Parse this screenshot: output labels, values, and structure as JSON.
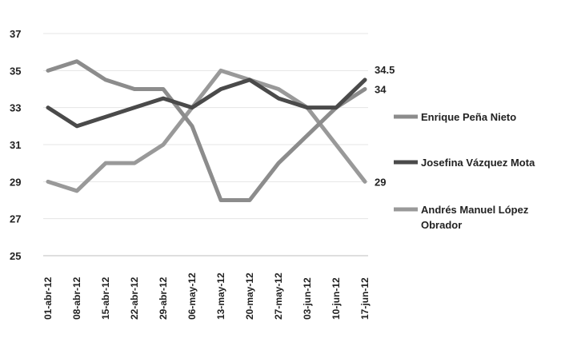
{
  "chart_data": {
    "type": "line",
    "categories": [
      "01-abr-12",
      "08-abr-12",
      "15-abr-12",
      "22-abr-12",
      "29-abr-12",
      "06-may-12",
      "13-may-12",
      "20-may-12",
      "27-may-12",
      "03-jun-12",
      "10-jun-12",
      "17-jun-12"
    ],
    "series": [
      {
        "name": "Enrique Peña Nieto",
        "color": "#8c8c8c",
        "values": [
          35,
          35.5,
          34.5,
          34,
          34,
          32,
          28,
          28,
          30,
          31.5,
          33,
          34
        ],
        "end_label": "34"
      },
      {
        "name": "Josefina Vázquez Mota",
        "color": "#4a4a4a",
        "values": [
          33,
          32,
          32.5,
          33,
          33.5,
          33,
          34,
          34.5,
          33.5,
          33,
          33,
          34.5
        ],
        "end_label": "34.5"
      },
      {
        "name": "Andrés Manuel López Obrador",
        "name_lines": [
          "Andrés Manuel López",
          "Obrador"
        ],
        "color": "#999999",
        "values": [
          29,
          28.5,
          30,
          30,
          31,
          33,
          35,
          34.5,
          34,
          33,
          31,
          29
        ],
        "end_label": "29"
      }
    ],
    "y_ticks": [
      "25",
      "27",
      "29",
      "31",
      "33",
      "35",
      "37"
    ],
    "ylim": [
      25,
      37
    ],
    "grid": true,
    "legend_position": "right",
    "title": "",
    "xlabel": "",
    "ylabel": ""
  }
}
